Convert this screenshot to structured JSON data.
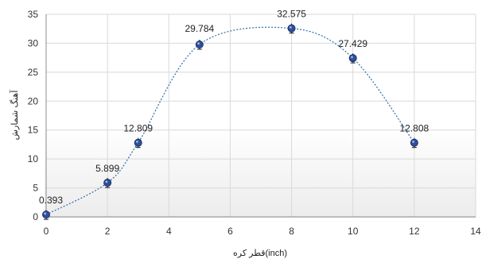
{
  "chart_data": {
    "type": "scatter",
    "x": [
      0,
      2,
      3,
      5,
      8,
      10,
      12
    ],
    "y": [
      0.393,
      5.899,
      12.809,
      29.784,
      32.575,
      27.429,
      12.808
    ],
    "data_labels": [
      "0.393",
      "5.899",
      "12.809",
      "29.784",
      "32.575",
      "27.429",
      "12.808"
    ],
    "title": "",
    "xlabel": "قطر کره(inch)",
    "ylabel": "آهنگ شمارش",
    "xlim": [
      0,
      14
    ],
    "ylim": [
      0,
      35
    ],
    "xticks": [
      "0",
      "2",
      "4",
      "6",
      "8",
      "10",
      "12",
      "14"
    ],
    "yticks": [
      "0",
      "5",
      "10",
      "15",
      "20",
      "25",
      "30",
      "35"
    ],
    "grid": true,
    "legend": "none",
    "trendline": "smooth dotted",
    "error_bars": true,
    "colors": {
      "marker": "#2f4f9c",
      "marker_edge": "#1a2f66",
      "trendline": "#2e6fa8",
      "grid": "#d9d9d9",
      "axis": "#8c8c8c"
    }
  }
}
